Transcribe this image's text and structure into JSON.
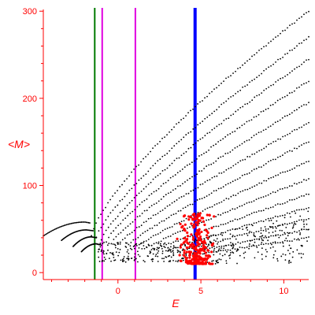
{
  "chart_data": {
    "type": "scatter",
    "title": "",
    "xlabel": "E",
    "ylabel": "<M>",
    "xlim": [
      -4.5,
      11.5
    ],
    "ylim": [
      -8,
      302
    ],
    "x_ticks": [
      0,
      5,
      10
    ],
    "x_tick_labels": [
      "0",
      "5",
      "10"
    ],
    "y_ticks": [
      0,
      100,
      200,
      300
    ],
    "y_tick_labels": [
      "0",
      "100",
      "200",
      "300"
    ],
    "grid": false,
    "legend": "none",
    "colors": {
      "axis": "#ff0000",
      "points": "#000000",
      "highlight_points": "#ff0000",
      "vline_green": "#007a00",
      "vline_magenta": "#e000e0",
      "vline_blue": "#0000ff"
    },
    "vertical_lines": [
      {
        "x": -1.4,
        "color": "#007a00",
        "width": 2
      },
      {
        "x": -0.95,
        "color": "#e000e0",
        "width": 2
      },
      {
        "x": 1.05,
        "color": "#e000e0",
        "width": 2
      },
      {
        "x": 4.65,
        "color": "#0000ff",
        "width": 4
      }
    ],
    "black_curves": [
      {
        "x0": -1.6,
        "y0": 42,
        "x1": 11.5,
        "y1": 300,
        "gamma": 0.75
      },
      {
        "x0": -1.3,
        "y0": 40,
        "x1": 11.5,
        "y1": 270,
        "gamma": 0.78
      },
      {
        "x0": -1.0,
        "y0": 38,
        "x1": 11.5,
        "y1": 245,
        "gamma": 0.8
      },
      {
        "x0": -0.7,
        "y0": 36,
        "x1": 11.5,
        "y1": 220,
        "gamma": 0.82
      },
      {
        "x0": -0.4,
        "y0": 34,
        "x1": 11.5,
        "y1": 195,
        "gamma": 0.84
      },
      {
        "x0": 0.0,
        "y0": 32,
        "x1": 11.5,
        "y1": 172,
        "gamma": 0.86
      },
      {
        "x0": 0.5,
        "y0": 30,
        "x1": 11.5,
        "y1": 150,
        "gamma": 0.88
      },
      {
        "x0": 1.0,
        "y0": 28,
        "x1": 11.5,
        "y1": 128,
        "gamma": 0.9
      },
      {
        "x0": 1.6,
        "y0": 27,
        "x1": 11.5,
        "y1": 108,
        "gamma": 0.92
      },
      {
        "x0": 2.2,
        "y0": 26,
        "x1": 11.5,
        "y1": 90,
        "gamma": 0.94
      },
      {
        "x0": 2.9,
        "y0": 25,
        "x1": 11.5,
        "y1": 75,
        "gamma": 0.96
      },
      {
        "x0": 3.6,
        "y0": 24,
        "x1": 11.5,
        "y1": 62,
        "gamma": 0.98
      },
      {
        "x0": 4.4,
        "y0": 23,
        "x1": 11.5,
        "y1": 50,
        "gamma": 1.0
      },
      {
        "x0": 5.2,
        "y0": 22,
        "x1": 11.5,
        "y1": 40,
        "gamma": 1.0
      }
    ],
    "left_arcs": [
      {
        "x0": -4.5,
        "y0": 42,
        "x1": -1.7,
        "y1": 57,
        "xpeak": -2.0,
        "ypeak": 58
      },
      {
        "x0": -3.4,
        "y0": 37,
        "x1": -1.5,
        "y1": 48,
        "xpeak": -1.9,
        "ypeak": 49
      },
      {
        "x0": -2.7,
        "y0": 30,
        "x1": -1.3,
        "y1": 40,
        "xpeak": -1.6,
        "ypeak": 41
      },
      {
        "x0": -2.2,
        "y0": 24,
        "x1": -1.1,
        "y1": 32,
        "xpeak": -1.3,
        "ypeak": 33
      }
    ],
    "scatter_region": {
      "x_range": [
        -1.2,
        3.0
      ],
      "y_range": [
        12,
        35
      ]
    },
    "red_cluster": {
      "x_center": 4.7,
      "x_spread": 0.9,
      "y_range": [
        10,
        68
      ]
    }
  }
}
